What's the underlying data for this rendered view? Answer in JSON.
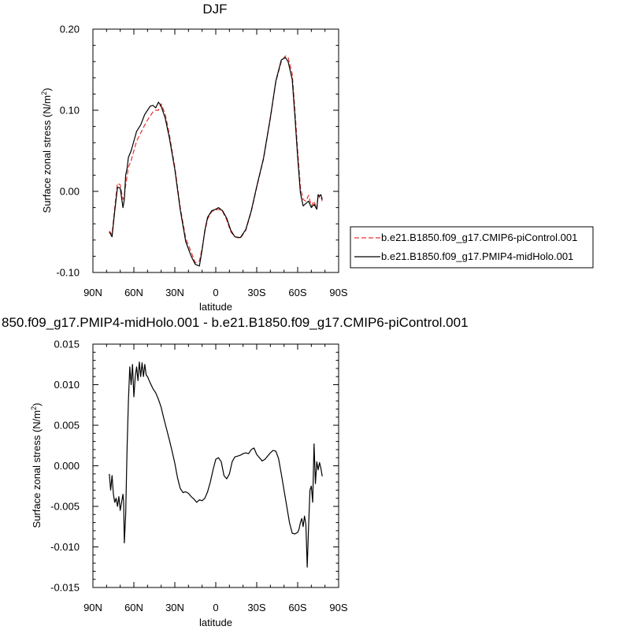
{
  "chart_data": [
    {
      "type": "line",
      "title": "DJF",
      "xlabel": "latitude",
      "ylabel": "Surface zonal stress (N/m²)",
      "ylabel_base": "Surface zonal stress (N/m",
      "ylabel_sup": "2",
      "ylabel_close": ")",
      "x_reversed": true,
      "xlim": [
        90,
        -90
      ],
      "ylim": [
        -0.1,
        0.2
      ],
      "xticks": [
        90,
        60,
        30,
        0,
        -30,
        -60,
        -90
      ],
      "xtick_labels": [
        "90N",
        "60N",
        "30N",
        "0",
        "30S",
        "60S",
        "90S"
      ],
      "yticks": [
        -0.1,
        0.0,
        0.1,
        0.2
      ],
      "ytick_labels": [
        "-0.10",
        "0.00",
        "0.10",
        "0.20"
      ],
      "legend_position": "right",
      "series": [
        {
          "name": "b.e21.B1850.f09_g17.CMIP6-piControl.001",
          "color": "#e8312f",
          "dash": "dashed",
          "x": [
            78,
            76,
            74,
            72,
            70,
            68,
            67,
            66,
            65,
            64,
            62,
            60,
            58,
            55,
            52,
            50,
            48,
            46,
            44,
            42,
            40,
            37,
            34,
            30,
            26,
            22,
            18,
            15,
            12,
            10,
            8,
            6,
            3,
            0,
            -2,
            -5,
            -8,
            -11,
            -14,
            -18,
            -22,
            -26,
            -30,
            -35,
            -40,
            -44,
            -48,
            -51,
            -53,
            -56,
            -58,
            -60,
            -62,
            -64,
            -66,
            -68,
            -70,
            -72,
            -74,
            -75,
            -76,
            -77,
            -78
          ],
          "y": [
            -0.049,
            -0.053,
            -0.02,
            0.01,
            0.008,
            -0.01,
            -0.006,
            0.008,
            0.018,
            0.03,
            0.038,
            0.05,
            0.062,
            0.072,
            0.082,
            0.088,
            0.093,
            0.098,
            0.1,
            0.1,
            0.108,
            0.095,
            0.07,
            0.03,
            -0.02,
            -0.058,
            -0.075,
            -0.088,
            -0.086,
            -0.07,
            -0.05,
            -0.034,
            -0.025,
            -0.023,
            -0.022,
            -0.025,
            -0.035,
            -0.05,
            -0.056,
            -0.058,
            -0.048,
            -0.025,
            0.005,
            0.04,
            0.09,
            0.135,
            0.16,
            0.167,
            0.165,
            0.145,
            0.1,
            0.05,
            0.005,
            -0.01,
            -0.012,
            -0.005,
            -0.018,
            -0.012,
            -0.022,
            -0.004,
            -0.008,
            -0.007,
            -0.012
          ]
        },
        {
          "name": "b.e21.B1850.f09_g17.PMIP4-midHolo.001",
          "color": "#000000",
          "dash": "solid",
          "x": [
            78,
            76,
            74,
            72,
            70,
            68,
            67,
            66,
            65,
            64,
            62,
            60,
            58,
            55,
            52,
            50,
            48,
            46,
            44,
            42,
            40,
            37,
            34,
            30,
            26,
            22,
            18,
            15,
            12,
            10,
            8,
            6,
            3,
            0,
            -2,
            -5,
            -8,
            -11,
            -14,
            -18,
            -22,
            -26,
            -30,
            -35,
            -40,
            -44,
            -48,
            -51,
            -53,
            -56,
            -58,
            -60,
            -62,
            -64,
            -66,
            -68,
            -70,
            -72,
            -74,
            -75,
            -76,
            -77,
            -78
          ],
          "y": [
            -0.05,
            -0.056,
            -0.024,
            0.005,
            0.004,
            -0.02,
            -0.01,
            0.02,
            0.028,
            0.042,
            0.05,
            0.062,
            0.074,
            0.082,
            0.095,
            0.1,
            0.105,
            0.106,
            0.103,
            0.11,
            0.105,
            0.09,
            0.066,
            0.027,
            -0.023,
            -0.062,
            -0.08,
            -0.09,
            -0.092,
            -0.072,
            -0.048,
            -0.032,
            -0.024,
            -0.022,
            -0.02,
            -0.024,
            -0.033,
            -0.048,
            -0.056,
            -0.057,
            -0.047,
            -0.024,
            0.006,
            0.041,
            0.091,
            0.136,
            0.162,
            0.165,
            0.16,
            0.138,
            0.092,
            0.042,
            -0.002,
            -0.018,
            -0.015,
            -0.012,
            -0.02,
            -0.016,
            -0.022,
            -0.004,
            -0.006,
            -0.004,
            -0.01
          ]
        }
      ]
    },
    {
      "type": "line",
      "title": "850.f09_g17.PMIP4-midHolo.001 - b.e21.B1850.f09_g17.CMIP6-piControl.001",
      "xlabel": "latitude",
      "ylabel": "Surface zonal stress (N/m²)",
      "ylabel_base": "Surface zonal stress (N/m",
      "ylabel_sup": "2",
      "ylabel_close": ")",
      "x_reversed": true,
      "xlim": [
        90,
        -90
      ],
      "ylim": [
        -0.015,
        0.015
      ],
      "xticks": [
        90,
        60,
        30,
        0,
        -30,
        -60,
        -90
      ],
      "xtick_labels": [
        "90N",
        "60N",
        "30N",
        "0",
        "30S",
        "60S",
        "90S"
      ],
      "yticks": [
        -0.015,
        -0.01,
        -0.005,
        0.0,
        0.005,
        0.01,
        0.015
      ],
      "ytick_labels": [
        "-0.015",
        "-0.010",
        "-0.005",
        "0.000",
        "0.005",
        "0.010",
        "0.015"
      ],
      "series": [
        {
          "color": "#000000",
          "dash": "solid",
          "x": [
            78,
            77,
            76,
            75,
            74,
            73,
            72,
            71,
            70,
            69,
            68,
            67.5,
            67,
            66,
            65,
            64,
            63,
            62,
            61,
            60,
            59,
            58,
            57,
            56,
            55,
            54,
            53,
            52,
            51,
            50,
            49,
            48,
            46,
            44,
            42,
            40,
            38,
            36,
            34,
            32,
            30,
            28,
            26,
            24,
            22,
            20,
            18,
            16,
            14,
            12,
            10,
            8,
            6,
            4,
            2,
            0,
            -2,
            -4,
            -6,
            -8,
            -10,
            -12,
            -14,
            -16,
            -18,
            -20,
            -22,
            -24,
            -26,
            -28,
            -30,
            -32,
            -34,
            -36,
            -38,
            -40,
            -42,
            -44,
            -46,
            -48,
            -50,
            -52,
            -54,
            -56,
            -58,
            -60,
            -61,
            -62,
            -63,
            -64,
            -65,
            -66,
            -67,
            -68,
            -69,
            -70,
            -71,
            -72,
            -73,
            -74,
            -75,
            -76,
            -77,
            -78
          ],
          "y": [
            -0.001,
            -0.003,
            -0.0012,
            -0.0035,
            -0.0045,
            -0.004,
            -0.005,
            -0.0038,
            -0.0055,
            -0.0045,
            -0.0035,
            -0.0045,
            -0.0095,
            -0.006,
            0.002,
            0.008,
            0.0122,
            0.01,
            0.0125,
            0.0085,
            0.011,
            0.0122,
            0.0105,
            0.0128,
            0.011,
            0.0127,
            0.011,
            0.0125,
            0.0112,
            0.011,
            0.0106,
            0.0102,
            0.0095,
            0.009,
            0.0082,
            0.0072,
            0.0058,
            0.0045,
            0.0032,
            0.0018,
            0.0003,
            -0.0015,
            -0.0028,
            -0.0033,
            -0.0032,
            -0.0034,
            -0.0038,
            -0.0041,
            -0.0045,
            -0.0042,
            -0.0043,
            -0.004,
            -0.0032,
            -0.002,
            -0.0005,
            0.0008,
            0.001,
            0.0005,
            -0.0012,
            -0.0016,
            -0.001,
            0.0005,
            0.0011,
            0.0012,
            0.0013,
            0.0015,
            0.0016,
            0.0015,
            0.002,
            0.0022,
            0.0014,
            0.001,
            0.0006,
            0.0008,
            0.0012,
            0.0016,
            0.0019,
            0.0018,
            0.0009,
            -0.001,
            -0.003,
            -0.005,
            -0.007,
            -0.0083,
            -0.0084,
            -0.0082,
            -0.0078,
            -0.007,
            -0.0065,
            -0.0075,
            -0.0062,
            -0.0072,
            -0.0125,
            -0.0074,
            -0.003,
            -0.0025,
            -0.0045,
            0.0027,
            -0.0022,
            0.0005,
            -0.0005,
            0.0004,
            -0.0003,
            -0.0013
          ]
        }
      ]
    }
  ]
}
